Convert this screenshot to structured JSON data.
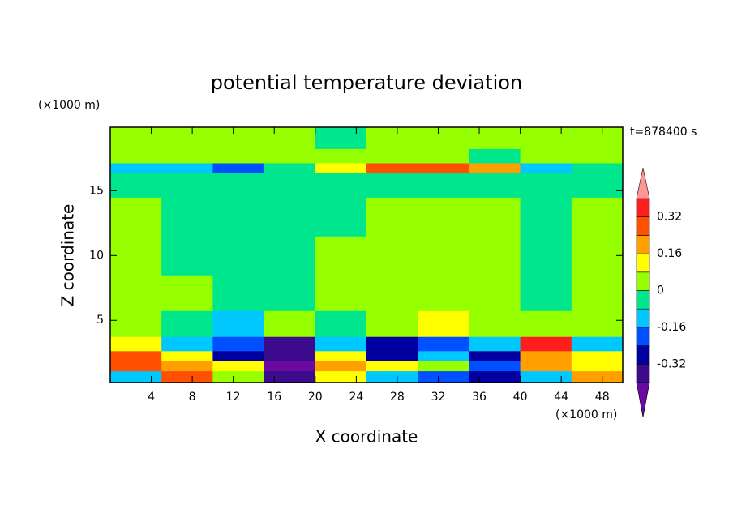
{
  "chart_data": {
    "type": "contour",
    "title": "potential temperature deviation",
    "x_label": "X coordinate",
    "y_label": "Z coordinate",
    "x_unit": "(×1000 m)",
    "y_unit": "(×1000 m)",
    "annotation": "t=878400 s",
    "xlim": [
      0,
      50
    ],
    "ylim": [
      0.2,
      19.9
    ],
    "xticks": [
      4,
      8,
      12,
      16,
      20,
      24,
      28,
      32,
      36,
      40,
      44,
      48
    ],
    "yticks": [
      5,
      10,
      15
    ],
    "x": [
      2.5,
      7.5,
      12.5,
      17.5,
      22.5,
      27.5,
      32.5,
      37.5,
      42.5,
      47.5
    ],
    "z": [
      0.7,
      1.5,
      2.3,
      3.0,
      4.5,
      7,
      10,
      13,
      16,
      16.8,
      17.5,
      19
    ],
    "values": [
      [
        -0.1,
        0.25,
        0.05,
        -0.35,
        0.1,
        -0.1,
        -0.2,
        -0.3,
        -0.1,
        0.2
      ],
      [
        0.3,
        0.2,
        0.1,
        -0.45,
        0.2,
        0.1,
        0.05,
        -0.2,
        0.2,
        0.15
      ],
      [
        0.25,
        0.1,
        -0.25,
        -0.38,
        0.15,
        -0.3,
        -0.1,
        -0.3,
        0.2,
        0.1
      ],
      [
        0.1,
        -0.1,
        -0.2,
        -0.35,
        -0.1,
        -0.3,
        -0.2,
        -0.1,
        0.35,
        -0.1
      ],
      [
        0.03,
        -0.03,
        -0.1,
        0.03,
        -0.03,
        0.03,
        0.1,
        0.03,
        0.03,
        0.03
      ],
      [
        0.03,
        0.03,
        -0.03,
        -0.03,
        0.03,
        0.03,
        0.03,
        0.03,
        -0.03,
        0.03
      ],
      [
        0.03,
        -0.03,
        -0.03,
        -0.03,
        0.03,
        0.03,
        0.03,
        0.03,
        -0.03,
        0.03
      ],
      [
        0.03,
        -0.03,
        -0.03,
        -0.03,
        -0.03,
        0.03,
        0.03,
        0.03,
        -0.03,
        0.03
      ],
      [
        -0.03,
        -0.03,
        -0.03,
        -0.03,
        -0.03,
        -0.03,
        -0.03,
        -0.03,
        -0.03,
        -0.03
      ],
      [
        -0.1,
        -0.1,
        -0.2,
        -0.05,
        0.1,
        0.25,
        0.3,
        0.2,
        -0.1,
        -0.05
      ],
      [
        0.03,
        0.03,
        0.03,
        0.03,
        0.03,
        0.03,
        0.03,
        -0.03,
        0.03,
        0.03
      ],
      [
        0.03,
        0.03,
        0.03,
        0.03,
        -0.03,
        0.03,
        0.03,
        0.03,
        0.03,
        0.03
      ]
    ],
    "levels": [
      -0.4,
      -0.32,
      -0.24,
      -0.16,
      -0.08,
      0,
      0.08,
      0.16,
      0.24,
      0.32,
      0.4
    ],
    "colors": [
      "#3c0a8c",
      "#0000a0",
      "#0050ff",
      "#00c8ff",
      "#00e68c",
      "#96ff00",
      "#ffff00",
      "#ffa000",
      "#ff5000",
      "#ff1e1e"
    ],
    "under_color": "#6a0aa0",
    "over_color": "#ff9696",
    "colorbar_ticks": [
      0.32,
      0.16,
      0,
      -0.16,
      -0.32
    ]
  }
}
